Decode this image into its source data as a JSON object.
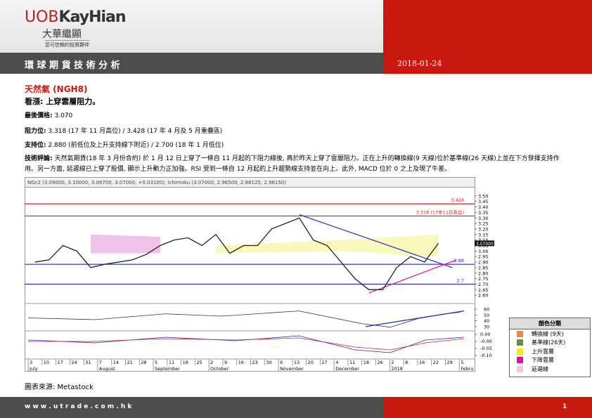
{
  "header": {
    "logo_a": "UOB",
    "logo_b": "KayHian",
    "chinese": "大華繼顯",
    "tagline": "您可信賴的投資夥伴",
    "title": "環 球 期 貨 技 術 分 析",
    "date": "2018-01-24"
  },
  "report": {
    "commodity": "天然氣 (NGH8)",
    "view": "看漲: 上穿雲層阻力。",
    "last_price": {
      "label": "最後價格:",
      "text": "3.070"
    },
    "resistance": {
      "label": "阻力位:",
      "text": "3.318 (17 年 11 月高位)  / 3.428 (17 年 4 月及 5 月重疊區)"
    },
    "support": {
      "label": "支持位:",
      "text": "2.880 (前低位及上升支持線下附近) / 2.700 (18 年 1 月低位)"
    },
    "comment": {
      "label": "技術評論:",
      "text": "天然氣期貨(18 年 3 月份合約) 於 1 月 12 日上穿了一條自 11 月起的下阻力線後, 再於昨天上穿了雲層阻力。正在上升的轉換線(9 天線)位於基準線(26 天線)上並在下方發揮支持作用。另一方面, 延遲線已上穿了股價, 顯示上升動力正加強。RSI 受到一條自 12 月起的上升趨勢線支持並在向上。此外, MACD 位於 0 之上及現了牛差。"
    }
  },
  "chart_data": {
    "type": "line",
    "header_text": "NGc2 (3.09000, 3.10000, 3.06700, 3.07000, +0.03100), Ichimoku (3.07000, 2.96500,      2.88125, 2.96150)",
    "categories": [
      "3",
      "10",
      "17",
      "24",
      "31",
      "7",
      "14",
      "21",
      "28",
      "5",
      "11",
      "18",
      "25",
      "2",
      "9",
      "16",
      "23",
      "30",
      "6",
      "13",
      "20",
      "27",
      "4",
      "11",
      "18",
      "26",
      "2",
      "8",
      "16",
      "22",
      "29",
      "5"
    ],
    "values": [
      2.9,
      2.92,
      3.05,
      3.0,
      2.85,
      2.88,
      2.9,
      2.92,
      2.97,
      3.05,
      3.1,
      3.12,
      3.05,
      3.15,
      2.98,
      3.05,
      3.05,
      3.2,
      3.25,
      3.3,
      3.1,
      3.05,
      2.9,
      2.75,
      2.65,
      2.65,
      2.85,
      2.95,
      2.9,
      3.07,
      null,
      null
    ],
    "color": "#222222",
    "month_labels": [
      "July",
      "August",
      "September",
      "October",
      "November",
      "December",
      "2018",
      "Febru"
    ],
    "ylim": [
      2.55,
      3.55
    ],
    "yticks": [
      {
        "value": 2.6,
        "label": "2.60"
      },
      {
        "value": 2.65,
        "label": "2.65"
      },
      {
        "value": 2.7,
        "label": "2.70"
      },
      {
        "value": 2.75,
        "label": "2.75"
      },
      {
        "value": 2.8,
        "label": "2.80"
      },
      {
        "value": 2.85,
        "label": "2.85"
      },
      {
        "value": 2.9,
        "label": "2.90"
      },
      {
        "value": 2.95,
        "label": "2.95"
      },
      {
        "value": 3.0,
        "label": "3.00"
      },
      {
        "value": 3.05,
        "label": "3.05"
      },
      {
        "value": 3.1,
        "label": "3.10"
      },
      {
        "value": 3.15,
        "label": "3.15"
      },
      {
        "value": 3.2,
        "label": "3.20"
      },
      {
        "value": 3.25,
        "label": "3.25"
      },
      {
        "value": 3.3,
        "label": "3.30"
      },
      {
        "value": 3.35,
        "label": "3.35"
      },
      {
        "value": 3.4,
        "label": "3.40"
      },
      {
        "value": 3.45,
        "label": "3.45"
      },
      {
        "value": 3.5,
        "label": "3.50"
      }
    ],
    "price_tag": {
      "value": 3.07,
      "label": "3.07000"
    },
    "levels": [
      {
        "value": 3.428,
        "label": "3.428",
        "color": "#d32020"
      },
      {
        "value": 3.318,
        "label": "3.318 (17年11月高位)",
        "color": "#d32020"
      },
      {
        "value": 2.88,
        "label": "2.88",
        "color": "#1f2fb0"
      },
      {
        "value": 2.7,
        "label": "2.7",
        "color": "#1f2fb0"
      }
    ],
    "rsi_ylim": [
      25,
      65
    ],
    "rsi_yticks": [
      60,
      50,
      40,
      30
    ],
    "macd_tick_labels": [
      "0.00",
      "-0.00",
      "-0.05",
      "-0.10"
    ]
  },
  "legend": {
    "title": "顏色分類",
    "items": [
      {
        "label": "轉換線 (9天)",
        "color": "#f08a3a"
      },
      {
        "label": "基準線(26天)",
        "color": "#6b8e3a"
      },
      {
        "label": "上升雲層",
        "color": "#f5f000"
      },
      {
        "label": "下降雲層",
        "color": "#e0109a"
      },
      {
        "label": "延遲線",
        "color": "#f7c6d8"
      }
    ]
  },
  "source": "圖表來源: Metastock",
  "footer": {
    "url": "w w w . u t r a d e . c o m . h k",
    "page": "1"
  }
}
